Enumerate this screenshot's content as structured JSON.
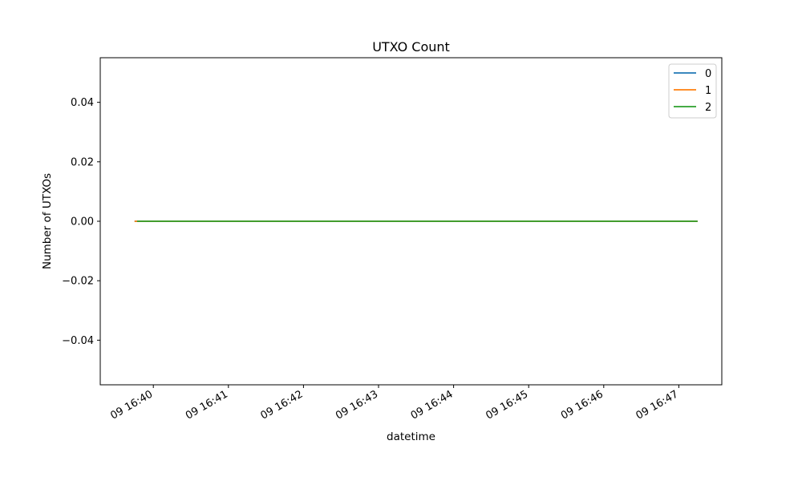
{
  "chart_data": {
    "type": "line",
    "title": "UTXO Count",
    "xlabel": "datetime",
    "ylabel": "Number of UTXOs",
    "x_ticks": [
      "09 16:40",
      "09 16:41",
      "09 16:42",
      "09 16:43",
      "09 16:44",
      "09 16:45",
      "09 16:46",
      "09 16:47"
    ],
    "x_range": [
      "09 16:39:40",
      "09 16:47:15"
    ],
    "ylim": [
      -0.055,
      0.055
    ],
    "y_ticks": [
      "0.04",
      "0.02",
      "0.00",
      "−0.02",
      "−0.04"
    ],
    "y_tick_values": [
      0.04,
      0.02,
      0.0,
      -0.02,
      -0.04
    ],
    "grid": false,
    "legend_position": "top-right",
    "series": [
      {
        "name": "0",
        "color": "#1f77b4",
        "x": [
          "09 16:39:45",
          "09 16:47:15"
        ],
        "y": [
          0,
          0
        ]
      },
      {
        "name": "1",
        "color": "#ff7f0e",
        "x": [
          "09 16:39:45",
          "09 16:47:15"
        ],
        "y": [
          0,
          0
        ]
      },
      {
        "name": "2",
        "color": "#2ca02c",
        "x": [
          "09 16:39:47",
          "09 16:47:15"
        ],
        "y": [
          0,
          0
        ]
      }
    ]
  }
}
